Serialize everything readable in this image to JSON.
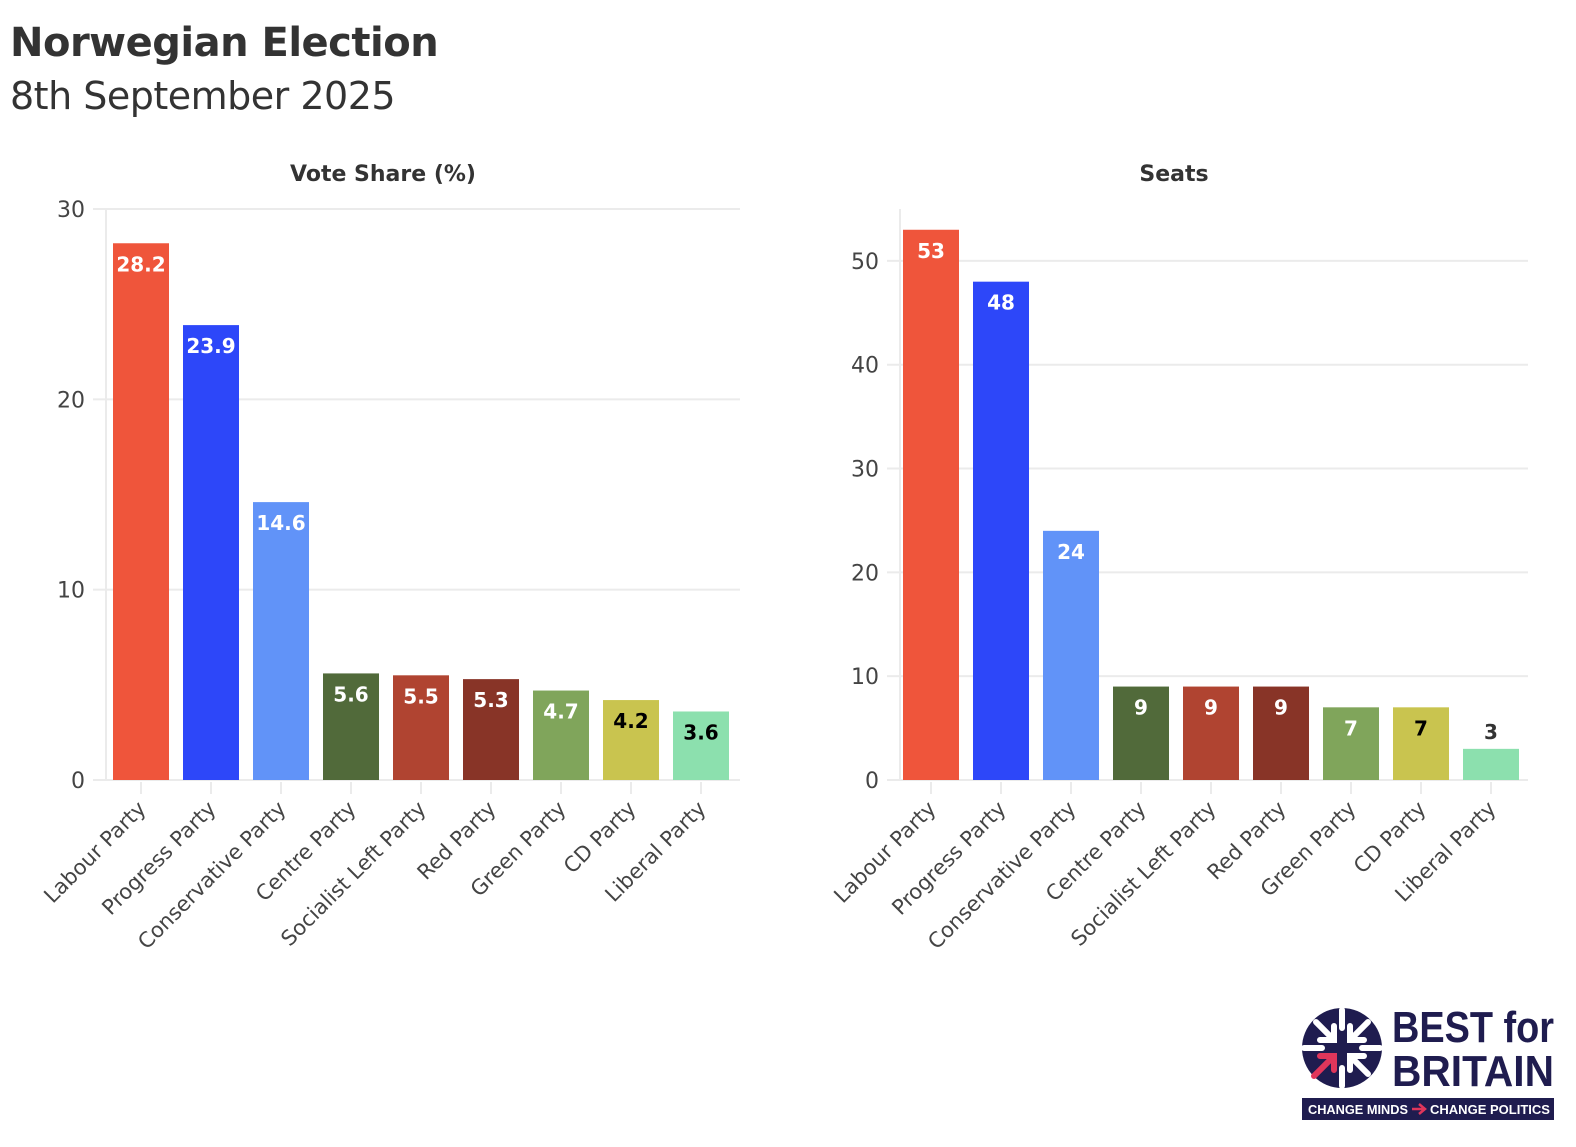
{
  "header": {
    "title": "Norwegian Election",
    "subtitle": "8th September 2025"
  },
  "chart_data": [
    {
      "type": "bar",
      "title": "Vote Share (%)",
      "xlabel": "",
      "ylabel": "",
      "ylim": [
        0,
        30
      ],
      "yticks": [
        0,
        10,
        20,
        30
      ],
      "ytick_labels": [
        "0",
        "10",
        "20",
        "30"
      ],
      "grid": true,
      "categories": [
        "Labour Party",
        "Progress Party",
        "Conservative Party",
        "Centre Party",
        "Socialist Left Party",
        "Red Party",
        "Green Party",
        "CD Party",
        "Liberal Party"
      ],
      "values": [
        28.2,
        23.9,
        14.6,
        5.6,
        5.5,
        5.3,
        4.7,
        4.2,
        3.6
      ],
      "data_labels": [
        "28.2",
        "23.9",
        "14.6",
        "5.6",
        "5.5",
        "5.3",
        "4.7",
        "4.2",
        "3.6"
      ],
      "colors": [
        "#EF553B",
        "#2D47F9",
        "#6193F8",
        "#516A3A",
        "#B04431",
        "#883427",
        "#80A55B",
        "#C9C44F",
        "#8CE0AE"
      ],
      "label_colors": [
        "#ffffff",
        "#ffffff",
        "#ffffff",
        "#ffffff",
        "#ffffff",
        "#ffffff",
        "#ffffff",
        "#000000",
        "#000000"
      ]
    },
    {
      "type": "bar",
      "title": "Seats",
      "xlabel": "",
      "ylabel": "",
      "ylim": [
        0,
        55
      ],
      "yticks": [
        0,
        10,
        20,
        30,
        40,
        50
      ],
      "ytick_labels": [
        "0",
        "10",
        "20",
        "30",
        "40",
        "50"
      ],
      "grid": true,
      "categories": [
        "Labour Party",
        "Progress Party",
        "Conservative Party",
        "Centre Party",
        "Socialist Left Party",
        "Red Party",
        "Green Party",
        "CD Party",
        "Liberal Party"
      ],
      "values": [
        53,
        48,
        24,
        9,
        9,
        9,
        7,
        7,
        3
      ],
      "data_labels": [
        "53",
        "48",
        "24",
        "9",
        "9",
        "9",
        "7",
        "7",
        "3"
      ],
      "colors": [
        "#EF553B",
        "#2D47F9",
        "#6193F8",
        "#516A3A",
        "#B04431",
        "#883427",
        "#80A55B",
        "#C9C44F",
        "#8CE0AE"
      ],
      "label_colors": [
        "#ffffff",
        "#ffffff",
        "#ffffff",
        "#ffffff",
        "#ffffff",
        "#ffffff",
        "#ffffff",
        "#000000",
        "#333333"
      ]
    }
  ],
  "logo": {
    "line1": "BEST for",
    "line2": "BRITAIN",
    "tagline_left": "CHANGE MINDS",
    "tagline_right": "CHANGE POLITICS",
    "navy": "#1F1C4F",
    "accent": "#E0365B"
  }
}
